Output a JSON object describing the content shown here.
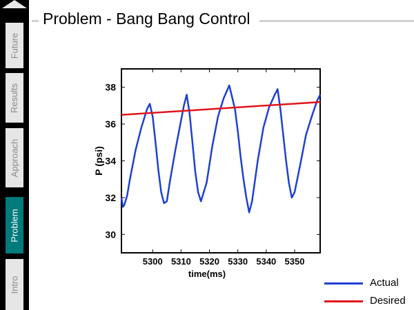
{
  "title": "Problem - Bang Bang Control",
  "nav": [
    {
      "label": "Future",
      "active": false
    },
    {
      "label": "Results",
      "active": false
    },
    {
      "label": "Approach",
      "active": false
    },
    {
      "label": "Problem",
      "active": true
    },
    {
      "label": "Intro",
      "active": false
    }
  ],
  "colors": {
    "actual": "#1f3fd0",
    "desired": "#e0141c",
    "active_nav": "#007b7b"
  },
  "chart_data": {
    "type": "line",
    "title": "",
    "xlabel": "time(ms)",
    "ylabel": "P (psi)",
    "xlim": [
      5289,
      5359
    ],
    "ylim": [
      29,
      39
    ],
    "xticks": [
      5300,
      5310,
      5320,
      5330,
      5340,
      5350
    ],
    "yticks": [
      30,
      32,
      34,
      36,
      38
    ],
    "grid": false,
    "legend_position": "bottom-right",
    "series": [
      {
        "name": "Actual",
        "color": "#1f3fd0",
        "x": [
          5289,
          5289.5,
          5290,
          5291,
          5292,
          5294,
          5296,
          5298,
          5299,
          5300,
          5301,
          5302,
          5303,
          5304,
          5305,
          5306,
          5308,
          5310,
          5311,
          5312,
          5313,
          5314,
          5315,
          5316,
          5317,
          5319,
          5321,
          5323,
          5325,
          5327,
          5329,
          5330,
          5331,
          5332,
          5333,
          5334,
          5335,
          5337,
          5339,
          5341,
          5343,
          5344,
          5345,
          5346,
          5347,
          5348,
          5349,
          5350,
          5352,
          5354,
          5356,
          5358,
          5359
        ],
        "y": [
          32.0,
          31.5,
          31.6,
          32.1,
          33.0,
          34.6,
          35.8,
          36.8,
          37.1,
          36.4,
          35.0,
          33.5,
          32.3,
          31.7,
          31.8,
          32.8,
          34.6,
          36.2,
          37.0,
          37.6,
          36.6,
          35.0,
          33.4,
          32.3,
          31.8,
          32.8,
          34.8,
          36.4,
          37.4,
          38.1,
          36.8,
          35.6,
          34.2,
          33.0,
          32.0,
          31.2,
          31.8,
          34.0,
          35.8,
          36.9,
          37.6,
          37.9,
          36.8,
          35.4,
          34.0,
          32.8,
          32.0,
          32.3,
          33.8,
          35.4,
          36.4,
          37.3,
          37.6
        ]
      },
      {
        "name": "Desired",
        "color": "#e0141c",
        "x": [
          5289,
          5359
        ],
        "y": [
          36.5,
          37.2
        ]
      }
    ]
  }
}
